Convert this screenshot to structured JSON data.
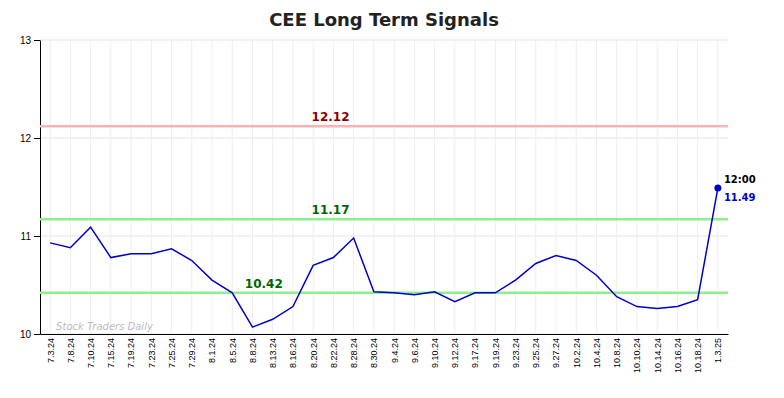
{
  "chart_data": {
    "type": "line",
    "title": "CEE Long Term Signals",
    "categories": [
      "7.3.24",
      "7.8.24",
      "7.10.24",
      "7.15.24",
      "7.19.24",
      "7.23.24",
      "7.25.24",
      "7.29.24",
      "8.1.24",
      "8.5.24",
      "8.8.24",
      "8.13.24",
      "8.16.24",
      "8.20.24",
      "8.22.24",
      "8.28.24",
      "8.30.24",
      "9.4.24",
      "9.6.24",
      "9.10.24",
      "9.12.24",
      "9.17.24",
      "9.19.24",
      "9.23.24",
      "9.25.24",
      "9.27.24",
      "10.2.24",
      "10.4.24",
      "10.8.24",
      "10.10.24",
      "10.14.24",
      "10.16.24",
      "10.18.24",
      "1.3.25"
    ],
    "values": [
      10.93,
      10.88,
      11.09,
      10.78,
      10.82,
      10.82,
      10.87,
      10.75,
      10.55,
      10.42,
      10.07,
      10.15,
      10.28,
      10.7,
      10.78,
      10.98,
      10.43,
      10.42,
      10.4,
      10.43,
      10.33,
      10.42,
      10.42,
      10.55,
      10.72,
      10.8,
      10.75,
      10.6,
      10.38,
      10.28,
      10.26,
      10.28,
      10.35,
      11.49
    ],
    "color": "#0000cc",
    "ylim": [
      10.0,
      13.0
    ],
    "yticks": [
      10,
      11,
      12,
      13
    ],
    "grid": true,
    "reference_lines": [
      {
        "value": 12.12,
        "label": "12.12",
        "color": "#ffb3b3",
        "label_color": "#8b0000"
      },
      {
        "value": 11.17,
        "label": "11.17",
        "color": "#90ee90",
        "label_color": "#006400"
      },
      {
        "value": 10.42,
        "label": "10.42",
        "color": "#90ee90",
        "label_color": "#006400"
      }
    ],
    "annotations": [
      {
        "text": "12:00",
        "color": "#000000"
      },
      {
        "text": "11.49",
        "color": "#0000cc"
      },
      {
        "text": "Stock Traders Daily",
        "color": "#bbbbbb"
      }
    ]
  }
}
